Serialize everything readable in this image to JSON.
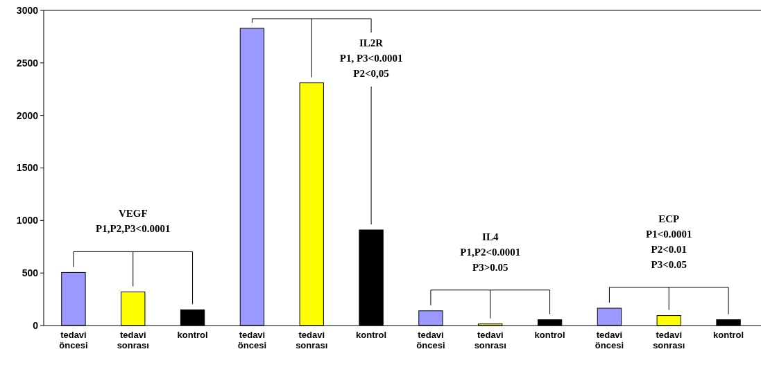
{
  "chart_data": {
    "type": "bar",
    "categories": [
      "tedavi\nöncesi",
      "tedavi\nsonrası",
      "kontrol",
      "tedavi\nöncesi",
      "tedavi\nsonrası",
      "kontrol",
      "tedavi\nöncesi",
      "tedavi\nsonrası",
      "kontrol",
      "tedavi\nöncesi",
      "tedavi\nsonrası",
      "kontrol"
    ],
    "values": [
      505,
      320,
      150,
      2830,
      2310,
      910,
      140,
      15,
      55,
      165,
      95,
      55
    ],
    "colors": [
      "#9999ff",
      "#ffff00",
      "#000000",
      "#9999ff",
      "#ffff00",
      "#000000",
      "#9999ff",
      "#ffff00",
      "#000000",
      "#9999ff",
      "#ffff00",
      "#000000"
    ],
    "ylim": [
      0,
      3000
    ],
    "yticks": [
      0,
      500,
      1000,
      1500,
      2000,
      2500,
      3000
    ],
    "annotations": [
      "VEGF\nP1,P2,P3<0.0001",
      "IL2R\nP1, P3<0.0001\nP2<0,05",
      "IL4\nP1,P2<0.0001\nP3>0.05",
      "ECP\nP1<0.0001\nP2<0.01\nP3<0.05"
    ],
    "grid": false
  }
}
